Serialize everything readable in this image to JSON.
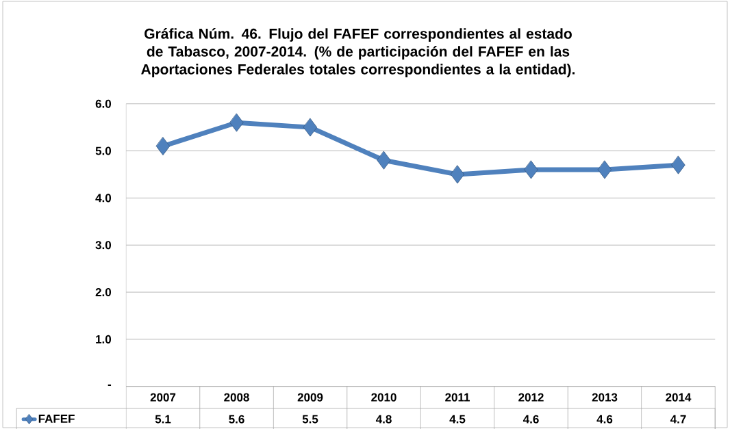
{
  "chart_data": {
    "type": "line",
    "title": "Gráfica Núm. 46. Flujo del FAFEF correspondientes al estado de Tabasco, 2007-2014. (%  de participación del FAFEF en las Aportaciones Federales totales correspondientes a la entidad).",
    "categories": [
      "2007",
      "2008",
      "2009",
      "2010",
      "2011",
      "2012",
      "2013",
      "2014"
    ],
    "series": [
      {
        "name": "FAFEF",
        "color": "#4f81bd",
        "values": [
          5.1,
          5.6,
          5.5,
          4.8,
          4.5,
          4.6,
          4.6,
          4.7
        ]
      }
    ],
    "ylim": [
      0,
      6
    ],
    "yticks": [
      {
        "value": 0,
        "label": "-"
      },
      {
        "value": 1,
        "label": "1.0"
      },
      {
        "value": 2,
        "label": "2.0"
      },
      {
        "value": 3,
        "label": "3.0"
      },
      {
        "value": 4,
        "label": "4.0"
      },
      {
        "value": 5,
        "label": "5.0"
      },
      {
        "value": 6,
        "label": "6.0"
      }
    ],
    "grid": "y",
    "legend": "bottom",
    "data_labels": true,
    "marker": "diamond",
    "line_style": "solid"
  }
}
